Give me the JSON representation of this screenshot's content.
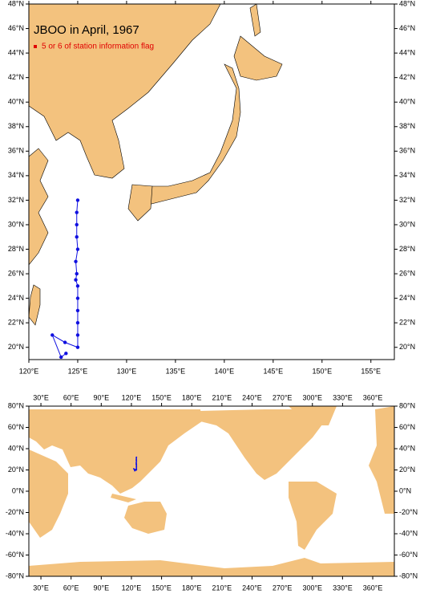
{
  "maps": [
    {
      "title": "JBOO in April, 1967",
      "legend": "5 or 6 of station information flag",
      "legend_color": "#e00000",
      "xlim": [
        120,
        157.4
      ],
      "ylim": [
        19,
        48
      ],
      "xticks": [
        {
          "value": 120,
          "label": "120°E"
        },
        {
          "value": 125,
          "label": "125°E"
        },
        {
          "value": 130,
          "label": "130°E"
        },
        {
          "value": 135,
          "label": "135°E"
        },
        {
          "value": 140,
          "label": "140°E"
        },
        {
          "value": 145,
          "label": "145°E"
        },
        {
          "value": 150,
          "label": "150°E"
        },
        {
          "value": 155,
          "label": "155°E"
        }
      ],
      "yticks": [
        {
          "value": 20,
          "label": "20°N"
        },
        {
          "value": 22,
          "label": "22°N"
        },
        {
          "value": 24,
          "label": "24°N"
        },
        {
          "value": 26,
          "label": "26°N"
        },
        {
          "value": 28,
          "label": "28°N"
        },
        {
          "value": 30,
          "label": "30°N"
        },
        {
          "value": 32,
          "label": "32°N"
        },
        {
          "value": 34,
          "label": "34°N"
        },
        {
          "value": 36,
          "label": "36°N"
        },
        {
          "value": 38,
          "label": "38°N"
        },
        {
          "value": 40,
          "label": "40°N"
        },
        {
          "value": 42,
          "label": "42°N"
        },
        {
          "value": 44,
          "label": "44°N"
        },
        {
          "value": 46,
          "label": "46°N"
        },
        {
          "value": 48,
          "label": "48°N"
        }
      ]
    },
    {
      "xlim": [
        18,
        381.5
      ],
      "ylim": [
        -80,
        80
      ],
      "xticks": [
        {
          "value": 30,
          "label": "30°E"
        },
        {
          "value": 60,
          "label": "60°E"
        },
        {
          "value": 90,
          "label": "90°E"
        },
        {
          "value": 120,
          "label": "120°E"
        },
        {
          "value": 150,
          "label": "150°E"
        },
        {
          "value": 180,
          "label": "180°E"
        },
        {
          "value": 210,
          "label": "210°E"
        },
        {
          "value": 240,
          "label": "240°E"
        },
        {
          "value": 270,
          "label": "270°E"
        },
        {
          "value": 300,
          "label": "300°E"
        },
        {
          "value": 330,
          "label": "330°E"
        },
        {
          "value": 360,
          "label": "360°E"
        }
      ],
      "yticks": [
        {
          "value": -80,
          "label": "-80°N"
        },
        {
          "value": -60,
          "label": "-60°N"
        },
        {
          "value": -40,
          "label": "-40°N"
        },
        {
          "value": -20,
          "label": "-20°N"
        },
        {
          "value": 0,
          "label": "0°N"
        },
        {
          "value": 20,
          "label": "20°N"
        },
        {
          "value": 40,
          "label": "40°N"
        },
        {
          "value": 60,
          "label": "60°N"
        },
        {
          "value": 80,
          "label": "80°N"
        }
      ]
    }
  ],
  "track": {
    "color": "#1010e0",
    "lon": [
      125,
      124.9,
      124.9,
      124.9,
      125,
      124.8,
      124.9,
      124.8,
      125,
      125,
      125,
      125,
      125,
      125,
      123.7,
      122.4,
      123.3,
      123.8
    ],
    "lat": [
      32,
      31,
      30,
      29,
      28,
      27,
      26,
      25.5,
      25,
      24,
      23,
      22,
      21,
      20,
      20.4,
      21,
      19.2,
      19.5
    ]
  }
}
